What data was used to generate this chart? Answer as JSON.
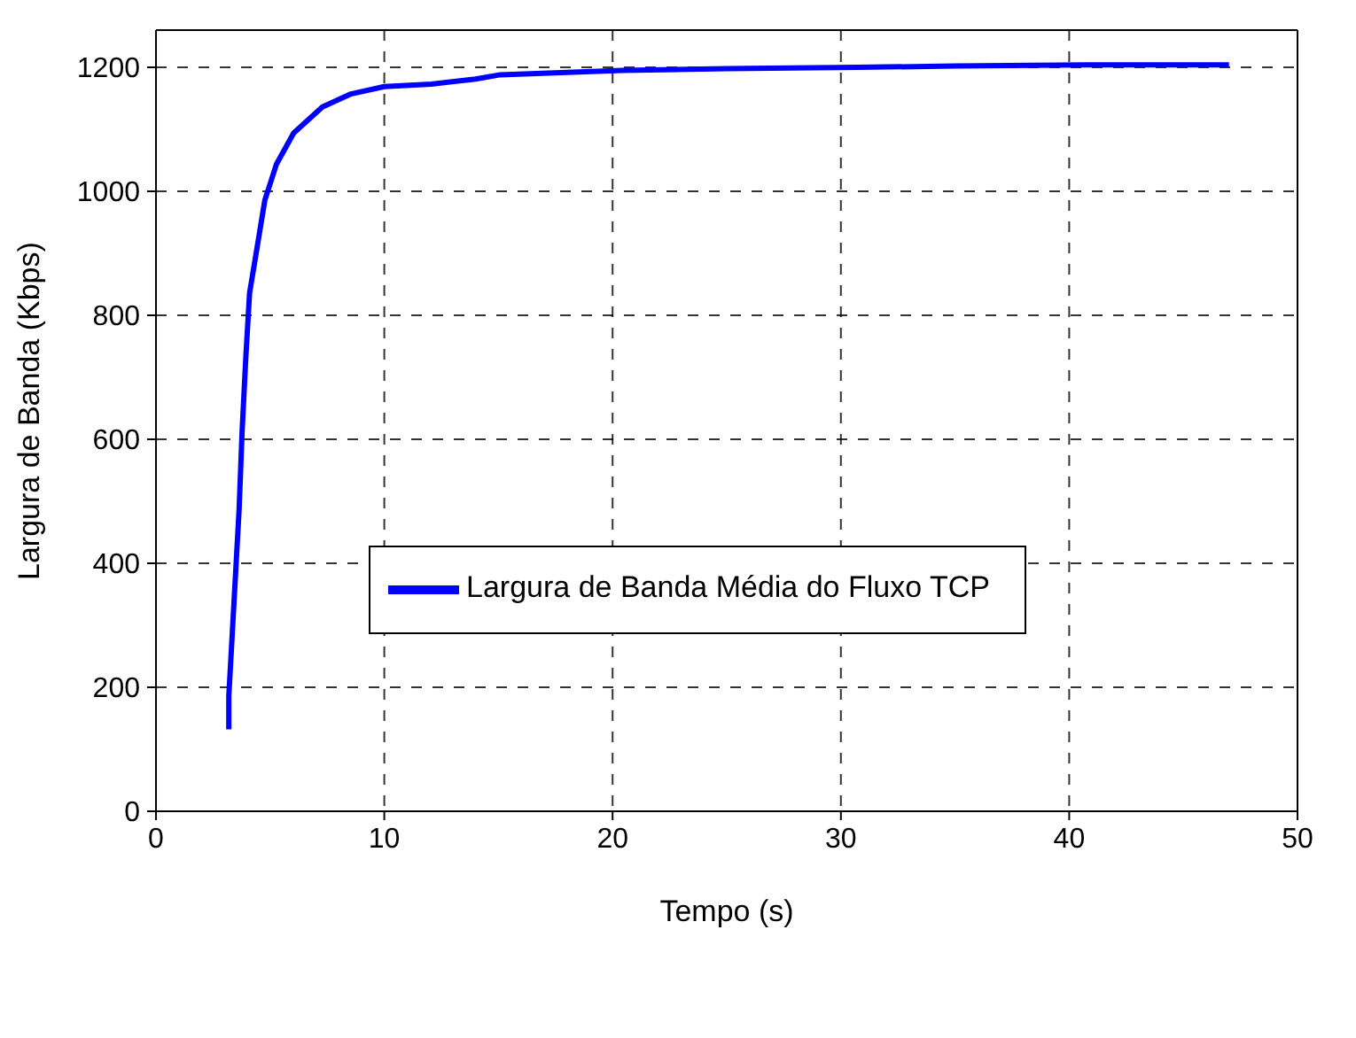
{
  "chart_data": {
    "type": "line",
    "xlabel": "Tempo (s)",
    "ylabel": "Largura de Banda (Kbps)",
    "xlim": [
      0,
      50
    ],
    "xticks": [
      0,
      10,
      20,
      30,
      40,
      50
    ],
    "ylim": [
      0,
      1260
    ],
    "yticks": [
      0,
      200,
      400,
      600,
      800,
      1000,
      1200
    ],
    "grid": true,
    "legend": "center",
    "marker": "none",
    "line_style": "solid",
    "x": [
      3.19,
      3.19,
      3.39,
      3.64,
      3.77,
      3.94,
      4.1,
      4.4,
      4.77,
      5.28,
      6.03,
      7.29,
      8.54,
      10,
      12.06,
      14,
      15.08,
      20.4,
      25,
      30.7,
      35,
      40.7,
      47
    ],
    "series": [
      {
        "name": "Largura de Banda Média do Fluxo TCP",
        "color": "#0000ff",
        "values": [
          132,
          186,
          319,
          486,
          611,
          736,
          836,
          903,
          986,
          1044,
          1094,
          1136,
          1157,
          1169,
          1173,
          1181,
          1188,
          1195,
          1198,
          1200,
          1202,
          1204,
          1204
        ]
      }
    ]
  }
}
